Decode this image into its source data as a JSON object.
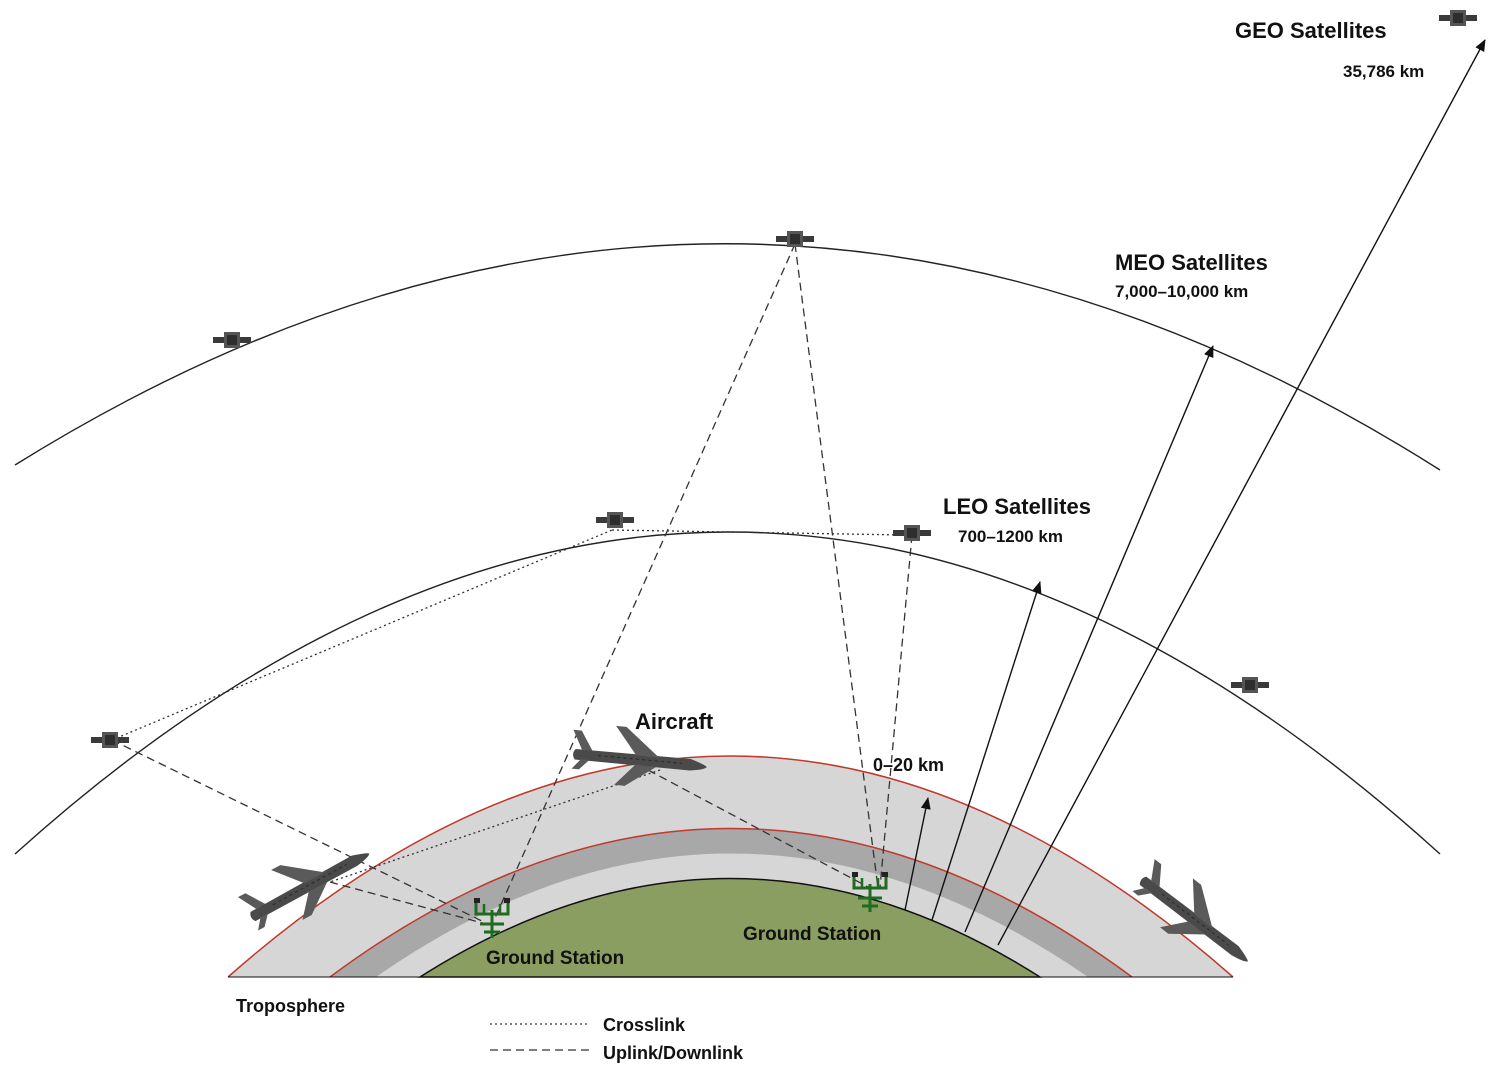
{
  "labels": {
    "geo_title": "GEO Satellites",
    "geo_altitude": "35,786 km",
    "meo_title": "MEO Satellites",
    "meo_altitude": "7,000–10,000 km",
    "leo_title": "LEO Satellites",
    "leo_altitude": "700–1200 km",
    "aircraft": "Aircraft",
    "aircraft_altitude": "0–20 km",
    "ground_station_left": "Ground Station",
    "ground_station_right": "Ground Station",
    "troposphere": "Troposphere"
  },
  "legend": {
    "crosslink": "Crosslink",
    "uplink_downlink": "Uplink/Downlink"
  },
  "colors": {
    "ground": "#8a9e62",
    "atmosphere_inner": "#a8a8a8",
    "atmosphere_outer": "#d6d6d6",
    "boundary": "#c0392b",
    "satellite": "#3a3a3a",
    "ground_station": "#1f6b1f"
  }
}
